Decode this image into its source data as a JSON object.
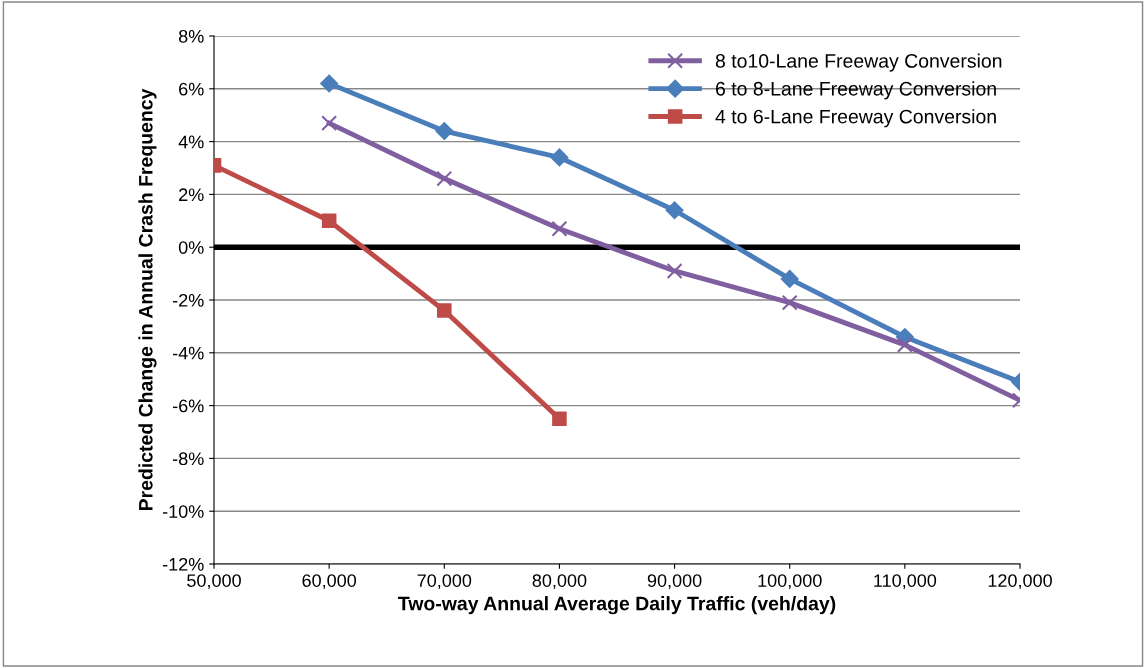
{
  "chart_data": {
    "type": "line",
    "xlabel": "Two-way Annual Average Daily Traffic (veh/day)",
    "ylabel": "Predicted Change in Annual Crash Frequency",
    "series": [
      {
        "name": "8 to10-Lane Freeway Conversion",
        "color": "#7f5fa0",
        "marker": "cross",
        "x": [
          60000,
          70000,
          80000,
          90000,
          100000,
          110000,
          120000
        ],
        "values": [
          4.7,
          2.6,
          0.7,
          -0.9,
          -2.1,
          -3.7,
          -5.8
        ]
      },
      {
        "name": "6 to 8-Lane Freeway Conversion",
        "color": "#4a7ebb",
        "marker": "diamond",
        "x": [
          60000,
          70000,
          80000,
          90000,
          100000,
          110000,
          120000
        ],
        "values": [
          6.2,
          4.4,
          3.4,
          1.4,
          -1.2,
          -3.4,
          -5.1
        ]
      },
      {
        "name": "4 to 6-Lane Freeway Conversion",
        "color": "#be4b48",
        "marker": "square",
        "x": [
          50000,
          60000,
          70000,
          80000
        ],
        "values": [
          3.1,
          1.0,
          -2.4,
          -6.5
        ]
      }
    ],
    "xlim": [
      50000,
      120000
    ],
    "xticks": [
      {
        "value": 50000,
        "label": "50,000"
      },
      {
        "value": 60000,
        "label": "60,000"
      },
      {
        "value": 70000,
        "label": "70,000"
      },
      {
        "value": 80000,
        "label": "80,000"
      },
      {
        "value": 90000,
        "label": "90,000"
      },
      {
        "value": 100000,
        "label": "100,000"
      },
      {
        "value": 110000,
        "label": "110,000"
      },
      {
        "value": 120000,
        "label": "120,000"
      }
    ],
    "ylim": [
      -12,
      8
    ],
    "yticks": [
      {
        "value": -12,
        "label": "-12%"
      },
      {
        "value": -10,
        "label": "-10%"
      },
      {
        "value": -8,
        "label": "-8%"
      },
      {
        "value": -6,
        "label": "-6%"
      },
      {
        "value": -4,
        "label": "-4%"
      },
      {
        "value": -2,
        "label": "-2%"
      },
      {
        "value": 0,
        "label": "0%"
      },
      {
        "value": 2,
        "label": "2%"
      },
      {
        "value": 4,
        "label": "4%"
      },
      {
        "value": 6,
        "label": "6%"
      },
      {
        "value": 8,
        "label": "8%"
      }
    ],
    "ref_lines": [
      {
        "axis": "y",
        "value": 0,
        "label": null,
        "color": "#000000"
      }
    ],
    "grid": "y",
    "legend": "top right",
    "line_style": "solid"
  }
}
